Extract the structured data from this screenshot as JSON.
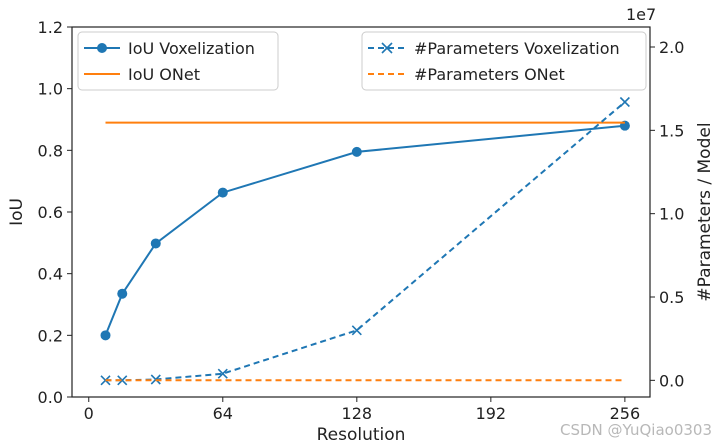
{
  "chart_data": {
    "type": "line",
    "xlabel": "Resolution",
    "ylabel": "IoU",
    "ylabel_right": "#Parameters / Model",
    "right_axis_multiplier": "1e7",
    "xlim": [
      -8,
      268
    ],
    "ylim": [
      0.0,
      1.2
    ],
    "ylim_right": [
      -0.1,
      2.12
    ],
    "x_ticks": [
      0,
      64,
      128,
      192,
      256
    ],
    "y_ticks": [
      0.0,
      0.2,
      0.4,
      0.6,
      0.8,
      1.0,
      1.2
    ],
    "y_ticks_right": [
      0.0,
      0.5,
      1.0,
      1.5,
      2.0
    ],
    "grid": false,
    "legend_left": "top-left",
    "legend_right": "top-right",
    "series": [
      {
        "name": "IoU Voxelization",
        "axis": "left",
        "color": "#1f77b4",
        "style": "solid",
        "marker": "circle",
        "x": [
          8,
          16,
          32,
          64,
          128,
          256
        ],
        "y": [
          0.2,
          0.335,
          0.498,
          0.663,
          0.795,
          0.88
        ]
      },
      {
        "name": "IoU ONet",
        "axis": "left",
        "color": "#ff7f0e",
        "style": "solid",
        "marker": "none",
        "x": [
          8,
          256
        ],
        "y": [
          0.89,
          0.89
        ]
      },
      {
        "name": "#Parameters Voxelization",
        "axis": "right",
        "color": "#1f77b4",
        "style": "dashed",
        "marker": "x",
        "x": [
          8,
          16,
          32,
          64,
          128,
          256
        ],
        "y": [
          0.0,
          0.0,
          0.005,
          0.04,
          0.3,
          1.67
        ]
      },
      {
        "name": "#Parameters ONet",
        "axis": "right",
        "color": "#ff7f0e",
        "style": "dashed",
        "marker": "none",
        "x": [
          8,
          256
        ],
        "y": [
          0.0,
          0.0
        ]
      }
    ]
  },
  "watermark": "CSDN @YuQiao0303"
}
